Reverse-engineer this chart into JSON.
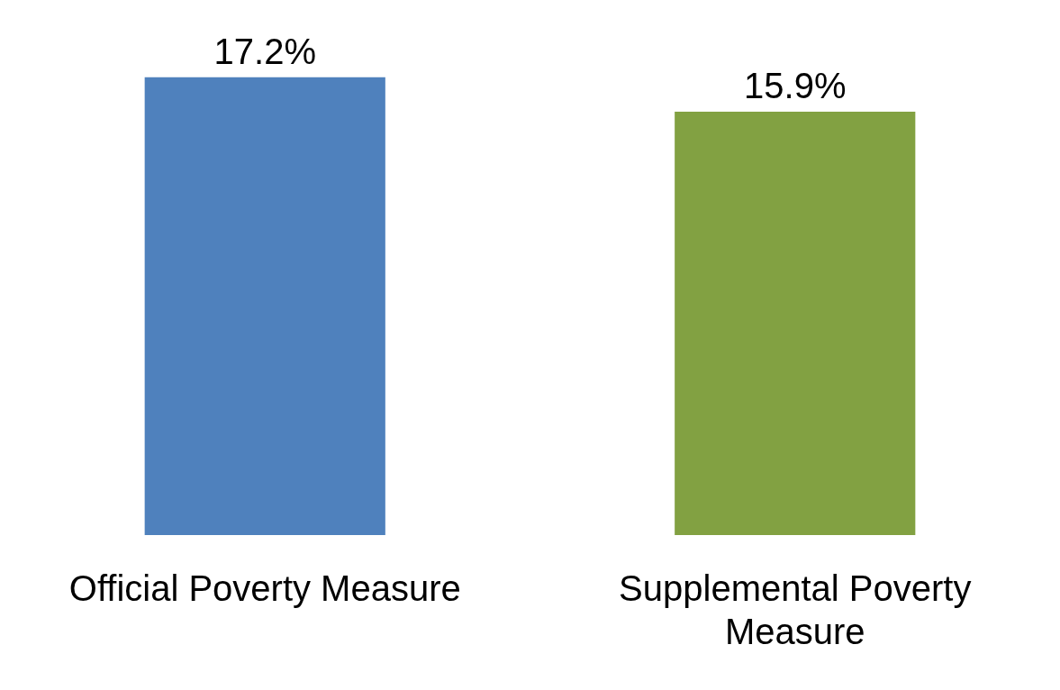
{
  "chart_data": {
    "type": "bar",
    "categories": [
      "Official Poverty Measure",
      "Supplemental Poverty Measure"
    ],
    "values": [
      17.2,
      15.9
    ],
    "colors": [
      "#4f81bd",
      "#82a142"
    ],
    "value_labels": [
      "17.2%",
      "15.9%"
    ],
    "grid": false,
    "legend": false,
    "tick_labels": "x"
  }
}
